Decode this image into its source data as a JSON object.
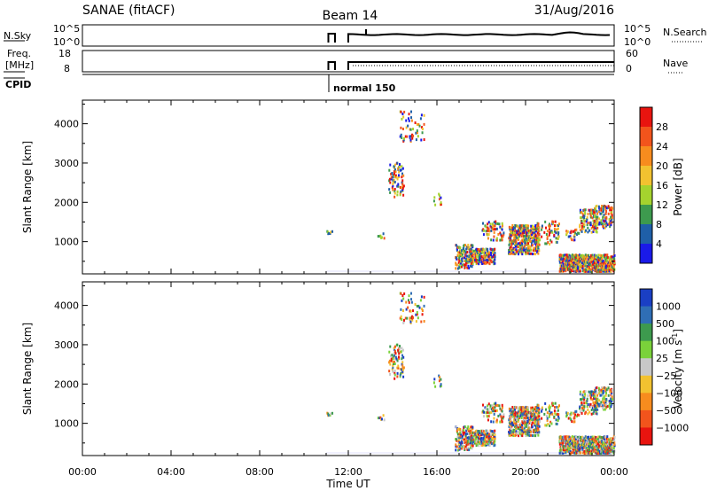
{
  "header": {
    "station": "SANAE (fitACF)",
    "beam": "Beam 14",
    "date": "31/Aug/2016"
  },
  "panels": {
    "nsky": {
      "left_label": "N.Sky",
      "right_label": "N.Search",
      "ytick_top": "10^5",
      "ytick_bottom": "10^0"
    },
    "freq": {
      "left_label_1": "Freq.",
      "left_label_2": "[MHz]",
      "right_label": "Nave",
      "ytick_left_top": "18",
      "ytick_left_bottom": "8",
      "ytick_right_top": "60",
      "ytick_right_bottom": "0"
    },
    "cpid": {
      "label": "CPID",
      "mode_text": "normal 150"
    }
  },
  "chart_data": [
    {
      "type": "heatmap",
      "name": "power",
      "ylabel": "Slant Range [km]",
      "colorbar_label": "Power [dB]",
      "colorbar_ticks": [
        "28",
        "24",
        "20",
        "16",
        "12",
        "8",
        "4"
      ],
      "colorbar_colors": [
        "#e8140f",
        "#f2541c",
        "#f78c1e",
        "#f2c230",
        "#a5d32e",
        "#3d9a4e",
        "#1f5fa8",
        "#1a1ae8"
      ],
      "yticks": [
        "4000",
        "3000",
        "2000",
        "1000"
      ],
      "ytick_values": [
        4000,
        3000,
        2000,
        1000
      ],
      "ylim": [
        180,
        4600
      ],
      "x_range_hours": [
        0,
        24
      ],
      "xticks": [
        "00:00",
        "04:00",
        "08:00",
        "12:00",
        "16:00",
        "20:00",
        "00:00"
      ],
      "clusters": [
        {
          "t": [
            11.0,
            11.3
          ],
          "r": [
            1150,
            1250
          ],
          "density": 0.35
        },
        {
          "t": [
            13.3,
            13.6
          ],
          "r": [
            1050,
            1250
          ],
          "density": 0.25
        },
        {
          "t": [
            13.8,
            14.5
          ],
          "r": [
            2100,
            3000
          ],
          "density": 0.18
        },
        {
          "t": [
            14.3,
            15.4
          ],
          "r": [
            3500,
            4300
          ],
          "density": 0.08
        },
        {
          "t": [
            15.8,
            16.2
          ],
          "r": [
            1900,
            2200
          ],
          "density": 0.1
        },
        {
          "t": [
            16.8,
            17.6
          ],
          "r": [
            280,
            900
          ],
          "density": 0.4
        },
        {
          "t": [
            17.4,
            18.6
          ],
          "r": [
            400,
            800
          ],
          "density": 0.5
        },
        {
          "t": [
            18.0,
            19.0
          ],
          "r": [
            1000,
            1500
          ],
          "density": 0.2
        },
        {
          "t": [
            19.2,
            20.6
          ],
          "r": [
            650,
            1400
          ],
          "density": 0.45
        },
        {
          "t": [
            20.5,
            21.5
          ],
          "r": [
            900,
            1500
          ],
          "density": 0.15
        },
        {
          "t": [
            21.8,
            22.4
          ],
          "r": [
            1000,
            1300
          ],
          "density": 0.2
        },
        {
          "t": [
            22.4,
            23.2
          ],
          "r": [
            1200,
            1800
          ],
          "density": 0.3
        },
        {
          "t": [
            23.0,
            23.9
          ],
          "r": [
            1300,
            1900
          ],
          "density": 0.3
        },
        {
          "t": [
            21.5,
            24.0
          ],
          "r": [
            200,
            650
          ],
          "density": 0.65
        }
      ]
    },
    {
      "type": "heatmap",
      "name": "velocity",
      "ylabel": "Slant Range [km]",
      "colorbar_label": "Velocity [m s",
      "colorbar_label_sup": "-1",
      "colorbar_label_end": "]",
      "colorbar_ticks": [
        "1000",
        "500",
        "100",
        "25",
        "−25",
        "−100",
        "−500",
        "−1000"
      ],
      "colorbar_colors": [
        "#1a3fc4",
        "#2f6eb5",
        "#3d9a4e",
        "#7ad23a",
        "#c8c8c8",
        "#f2c230",
        "#f78c1e",
        "#f2541c",
        "#e8140f"
      ],
      "yticks": [
        "4000",
        "3000",
        "2000",
        "1000"
      ],
      "ytick_values": [
        4000,
        3000,
        2000,
        1000
      ],
      "ylim": [
        180,
        4600
      ],
      "x_range_hours": [
        0,
        24
      ],
      "xticks": [
        "00:00",
        "04:00",
        "08:00",
        "12:00",
        "16:00",
        "20:00",
        "00:00"
      ],
      "xlabel": "Time UT"
    }
  ]
}
